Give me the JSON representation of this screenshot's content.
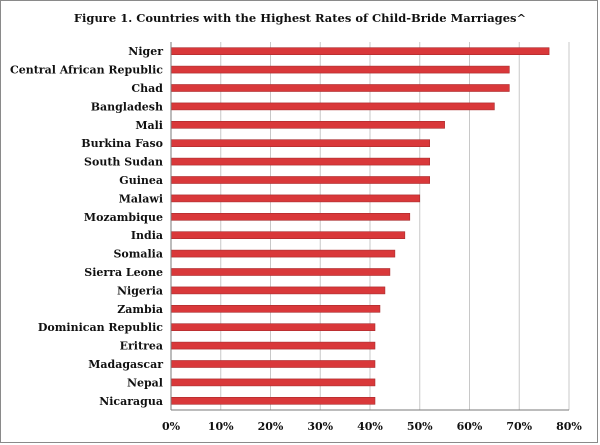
{
  "chart_data": {
    "type": "bar",
    "orientation": "horizontal",
    "title": "Figure 1. Countries with the Highest Rates of Child-Bride Marriages^",
    "xlabel": "",
    "ylabel": "",
    "xlim": [
      0,
      80
    ],
    "xticks": [
      "0%",
      "10%",
      "20%",
      "30%",
      "40%",
      "50%",
      "60%",
      "70%",
      "80%"
    ],
    "grid": "vertical",
    "legend": "none",
    "bar_color": "#d9383a",
    "categories": [
      "Niger",
      "Central African Republic",
      "Chad",
      "Bangladesh",
      "Mali",
      "Burkina Faso",
      "South Sudan",
      "Guinea",
      "Malawi",
      "Mozambique",
      "India",
      "Somalia",
      "Sierra Leone",
      "Nigeria",
      "Zambia",
      "Dominican Republic",
      "Eritrea",
      "Madagascar",
      "Nepal",
      "Nicaragua"
    ],
    "values": [
      76,
      68,
      68,
      65,
      55,
      52,
      52,
      52,
      50,
      48,
      47,
      45,
      44,
      43,
      42,
      41,
      41,
      41,
      41,
      41
    ]
  }
}
